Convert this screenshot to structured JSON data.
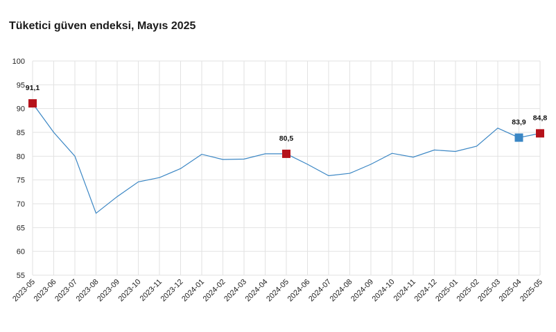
{
  "chart_data": {
    "type": "line",
    "title": "Tüketici güven endeksi, Mayıs 2025",
    "xlabel": "",
    "ylabel": "",
    "ylim": [
      55,
      100
    ],
    "yticks": [
      55,
      60,
      65,
      70,
      75,
      80,
      85,
      90,
      95,
      100
    ],
    "grid": true,
    "categories": [
      "2023-05",
      "2023-06",
      "2023-07",
      "2023-08",
      "2023-09",
      "2023-10",
      "2023-11",
      "2023-12",
      "2024-01",
      "2024-02",
      "2024-03",
      "2024-04",
      "2024-05",
      "2024-06",
      "2024-07",
      "2024-08",
      "2024-09",
      "2024-10",
      "2024-11",
      "2024-12",
      "2025-01",
      "2025-02",
      "2025-03",
      "2025-04",
      "2025-05"
    ],
    "series": [
      {
        "values": [
          91.1,
          85.0,
          80.0,
          68.0,
          71.5,
          74.6,
          75.5,
          77.4,
          80.4,
          79.3,
          79.4,
          80.5,
          80.5,
          78.3,
          75.9,
          76.4,
          78.3,
          80.6,
          79.8,
          81.3,
          81.0,
          82.1,
          85.9,
          83.9,
          84.8
        ],
        "color": "#3a86c4"
      }
    ],
    "highlights": [
      {
        "index": 0,
        "label": "91,1",
        "color": "#b5121b"
      },
      {
        "index": 12,
        "label": "80,5",
        "color": "#b5121b"
      },
      {
        "index": 23,
        "label": "83,9",
        "color": "#3a86c4"
      },
      {
        "index": 24,
        "label": "84,8",
        "color": "#b5121b"
      }
    ]
  }
}
